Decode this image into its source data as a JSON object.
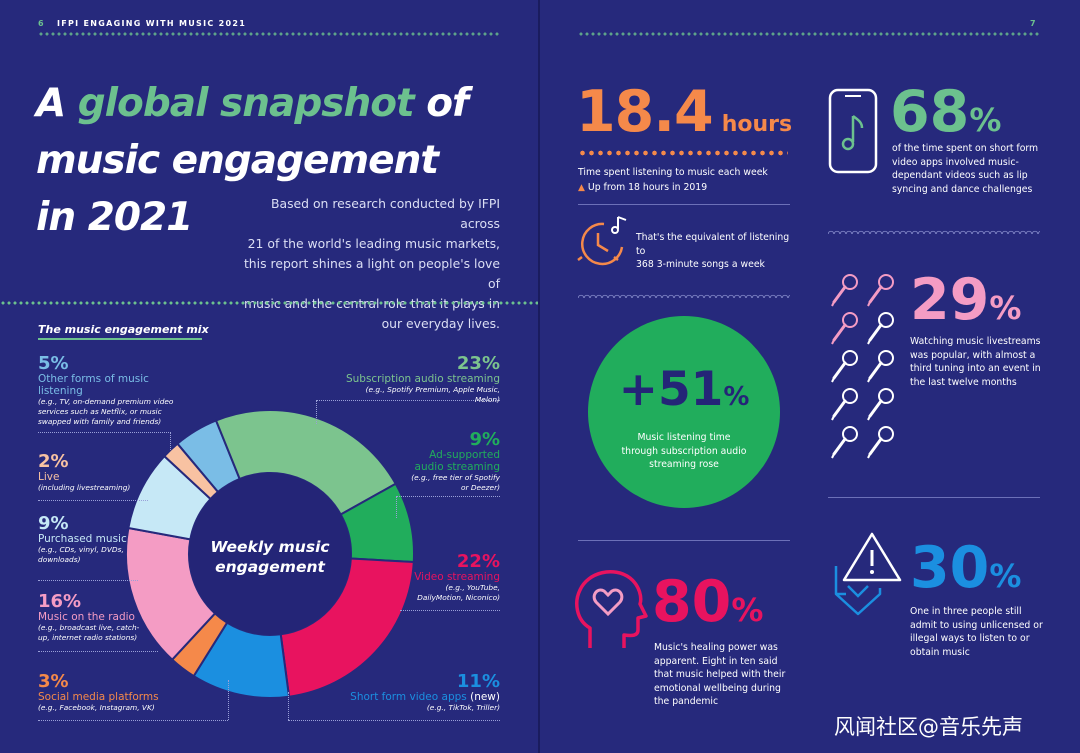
{
  "header": {
    "left_page_number": "6",
    "left_title": "IFPI ENGAGING WITH MUSIC 2021",
    "right_page_number": "7"
  },
  "hero": {
    "line1_a": "A ",
    "line1_b": "global snapshot",
    "line1_c": " of",
    "line2": "music engagement",
    "line3": "in 2021"
  },
  "intro": {
    "lines": [
      "Based on research conducted by IFPI across",
      "21 of the world's leading music markets,",
      "this report shines a light on people's love of",
      "music and the central role that it plays in",
      "our everyday lives."
    ]
  },
  "mix": {
    "title": "The music engagement mix",
    "center_label_1": "Weekly music",
    "center_label_2": "engagement",
    "segments": [
      {
        "pct": "5%",
        "value": 5,
        "label": "Other forms of music listening",
        "sub": "(e.g., TV, on-demand premium video services such as Netflix, or music swapped with family and friends)",
        "color": "#7abde6"
      },
      {
        "pct": "23%",
        "value": 23,
        "label": "Subscription audio streaming",
        "sub": "(e.g., Spotify Premium, Apple Music, Melon)",
        "color": "#7cc48e"
      },
      {
        "pct": "9%",
        "value": 9,
        "label": "Ad-supported audio streaming",
        "sub": "(e.g., free tier of Spotify or Deezer)",
        "color": "#21ad5c"
      },
      {
        "pct": "22%",
        "value": 22,
        "label": "Video streaming",
        "sub": "(e.g., YouTube, DailyMotion, Niconico)",
        "color": "#e8135f"
      },
      {
        "pct": "11%",
        "value": 11,
        "label": "Short form video apps",
        "label_extra": "(new)",
        "sub": "(e.g., TikTok, Triller)",
        "color": "#1b8fe0"
      },
      {
        "pct": "3%",
        "value": 3,
        "label": "Social media platforms",
        "sub": "(e.g., Facebook, Instagram, VK)",
        "color": "#f5894a"
      },
      {
        "pct": "16%",
        "value": 16,
        "label": "Music on the radio",
        "sub": "(e.g., broadcast live, catch-up, internet radio stations)",
        "color": "#f49cc4"
      },
      {
        "pct": "9%",
        "value": 9,
        "label": "Purchased music",
        "sub": "(e.g., CDs, vinyl, DVDs, downloads)",
        "color": "#c6e8f6"
      },
      {
        "pct": "2%",
        "value": 2,
        "label": "Live",
        "sub": "(including livestreaming)",
        "color": "#f8c2a2"
      }
    ]
  },
  "stats": {
    "hours": {
      "number": "18.4",
      "unit": "hours",
      "caption": "Time spent listening to music each week",
      "change": "Up from 18 hours in 2019",
      "equiv_1": "That's the equivalent of listening to",
      "equiv_2": "368 3-minute songs a week"
    },
    "short_form": {
      "number": "68",
      "sign": "%",
      "lines": [
        "of the time spent on short form",
        "video apps involved music-",
        "dependant videos such as lip",
        "syncing and dance challenges"
      ]
    },
    "subscription": {
      "number": "+51",
      "sign": "%",
      "lines": [
        "Music listening time",
        "through subscription audio",
        "streaming rose"
      ]
    },
    "livestream": {
      "number": "29",
      "sign": "%",
      "lines": [
        "Watching music livestreams",
        "was popular, with almost a",
        "third tuning into an event in",
        "the last twelve months"
      ]
    },
    "healing": {
      "number": "80",
      "sign": "%",
      "lines": [
        "Music's healing power was",
        "apparent. Eight in ten said",
        "that music helped with their",
        "emotional wellbeing during",
        "the pandemic"
      ]
    },
    "unlicensed": {
      "number": "30",
      "sign": "%",
      "lines": [
        "One in three people still",
        "admit to using unlicensed or",
        "illegal ways to listen to or",
        "obtain music"
      ]
    }
  },
  "colors": {
    "background": "#26297c",
    "green": "#6cc18e",
    "orange": "#f5894a",
    "pink": "#f49cc4",
    "magenta": "#e8135f",
    "blue": "#1b8fe0",
    "green_dark": "#21ad5c"
  },
  "watermark": "风闻社区@音乐先声"
}
